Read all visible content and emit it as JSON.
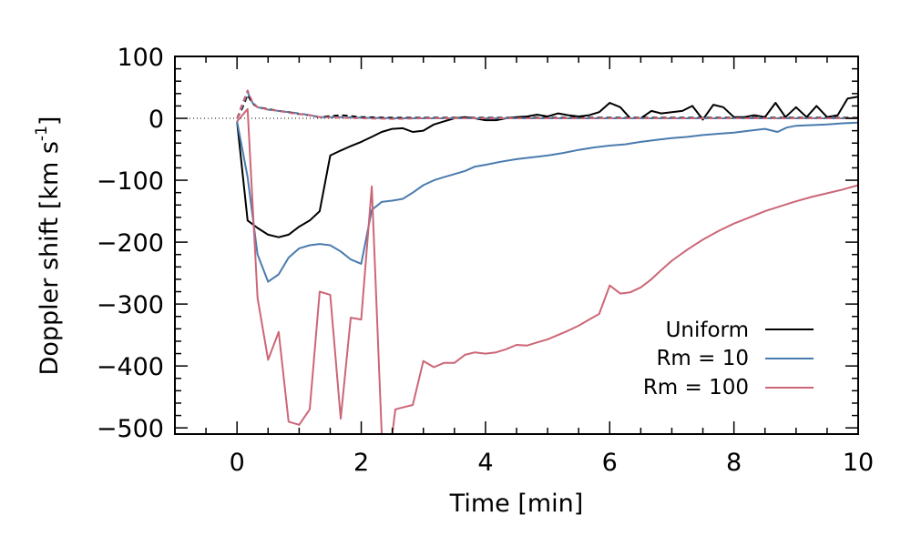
{
  "chart_data": {
    "type": "line",
    "xlabel": "Time [min]",
    "ylabel_main": "Doppler shift [km s",
    "ylabel_sup": "-1",
    "ylabel_close": "]",
    "xlim": [
      -1,
      10
    ],
    "ylim": [
      -510,
      100
    ],
    "xticks": [
      0,
      2,
      4,
      6,
      8,
      10
    ],
    "yticks": [
      100,
      0,
      -100,
      -200,
      -300,
      -400,
      -500
    ],
    "ytick_labels": [
      "100",
      "0",
      "−100",
      "−200",
      "−300",
      "−400",
      "−500"
    ],
    "zero_line": "dotted",
    "legend_position": "lower-right",
    "series": [
      {
        "name": "Uniform",
        "color": "#000000",
        "style": "solid",
        "points": [
          [
            0,
            -5
          ],
          [
            0.17,
            -165
          ],
          [
            0.33,
            -177
          ],
          [
            0.5,
            -188
          ],
          [
            0.67,
            -192
          ],
          [
            0.83,
            -188
          ],
          [
            1.0,
            -175
          ],
          [
            1.17,
            -165
          ],
          [
            1.33,
            -150
          ],
          [
            1.5,
            -60
          ],
          [
            1.67,
            -52
          ],
          [
            1.83,
            -45
          ],
          [
            2.0,
            -38
          ],
          [
            2.17,
            -30
          ],
          [
            2.33,
            -22
          ],
          [
            2.5,
            -17
          ],
          [
            2.67,
            -16
          ],
          [
            2.83,
            -22
          ],
          [
            3.0,
            -20
          ],
          [
            3.17,
            -10
          ],
          [
            3.33,
            -5
          ],
          [
            3.5,
            0
          ],
          [
            3.67,
            2
          ],
          [
            3.83,
            0
          ],
          [
            4.0,
            -3
          ],
          [
            4.17,
            -3
          ],
          [
            4.33,
            0
          ],
          [
            4.5,
            2
          ],
          [
            4.67,
            3
          ],
          [
            4.83,
            6
          ],
          [
            5.0,
            3
          ],
          [
            5.17,
            8
          ],
          [
            5.33,
            5
          ],
          [
            5.5,
            3
          ],
          [
            5.67,
            5
          ],
          [
            5.83,
            10
          ],
          [
            6.0,
            25
          ],
          [
            6.17,
            18
          ],
          [
            6.33,
            0
          ],
          [
            6.5,
            0
          ],
          [
            6.67,
            12
          ],
          [
            6.83,
            8
          ],
          [
            7.0,
            10
          ],
          [
            7.17,
            12
          ],
          [
            7.33,
            20
          ],
          [
            7.5,
            -2
          ],
          [
            7.67,
            22
          ],
          [
            7.83,
            18
          ],
          [
            8.0,
            2
          ],
          [
            8.17,
            2
          ],
          [
            8.33,
            5
          ],
          [
            8.5,
            2
          ],
          [
            8.67,
            25
          ],
          [
            8.83,
            2
          ],
          [
            9.0,
            18
          ],
          [
            9.17,
            2
          ],
          [
            9.33,
            20
          ],
          [
            9.5,
            2
          ],
          [
            9.67,
            5
          ],
          [
            9.83,
            32
          ],
          [
            10.0,
            35
          ]
        ]
      },
      {
        "name": "Rm = 10",
        "color": "#4a7bae",
        "style": "solid",
        "points": [
          [
            0,
            -5
          ],
          [
            0.17,
            -95
          ],
          [
            0.33,
            -220
          ],
          [
            0.5,
            -264
          ],
          [
            0.67,
            -252
          ],
          [
            0.83,
            -225
          ],
          [
            1.0,
            -210
          ],
          [
            1.17,
            -205
          ],
          [
            1.33,
            -203
          ],
          [
            1.5,
            -205
          ],
          [
            1.67,
            -215
          ],
          [
            1.83,
            -228
          ],
          [
            2.0,
            -235
          ],
          [
            2.17,
            -148
          ],
          [
            2.33,
            -135
          ],
          [
            2.5,
            -133
          ],
          [
            2.67,
            -130
          ],
          [
            2.83,
            -120
          ],
          [
            3.0,
            -108
          ],
          [
            3.17,
            -100
          ],
          [
            3.33,
            -95
          ],
          [
            3.5,
            -90
          ],
          [
            3.67,
            -85
          ],
          [
            3.83,
            -78
          ],
          [
            4.0,
            -75
          ],
          [
            4.25,
            -70
          ],
          [
            4.5,
            -66
          ],
          [
            4.75,
            -63
          ],
          [
            5.0,
            -60
          ],
          [
            5.25,
            -56
          ],
          [
            5.5,
            -51
          ],
          [
            5.75,
            -47
          ],
          [
            6.0,
            -44
          ],
          [
            6.25,
            -42
          ],
          [
            6.5,
            -38
          ],
          [
            6.75,
            -35
          ],
          [
            7.0,
            -32
          ],
          [
            7.25,
            -30
          ],
          [
            7.5,
            -27
          ],
          [
            7.75,
            -25
          ],
          [
            8.0,
            -23
          ],
          [
            8.25,
            -20
          ],
          [
            8.5,
            -17
          ],
          [
            8.7,
            -22
          ],
          [
            8.85,
            -15
          ],
          [
            9.0,
            -12
          ],
          [
            9.25,
            -11
          ],
          [
            9.5,
            -10
          ],
          [
            9.75,
            -8
          ],
          [
            10.0,
            -7
          ]
        ]
      },
      {
        "name": "Rm = 100",
        "color": "#cc6677",
        "style": "solid",
        "points": [
          [
            0,
            -5
          ],
          [
            0.17,
            15
          ],
          [
            0.33,
            -290
          ],
          [
            0.5,
            -390
          ],
          [
            0.67,
            -345
          ],
          [
            0.83,
            -490
          ],
          [
            1.0,
            -495
          ],
          [
            1.17,
            -470
          ],
          [
            1.33,
            -280
          ],
          [
            1.5,
            -285
          ],
          [
            1.67,
            -485
          ],
          [
            1.83,
            -322
          ],
          [
            2.0,
            -325
          ],
          [
            2.17,
            -110
          ],
          [
            2.33,
            -510
          ],
          [
            2.5,
            -510
          ],
          [
            2.55,
            -470
          ],
          [
            2.67,
            -467
          ],
          [
            2.83,
            -463
          ],
          [
            3.0,
            -392
          ],
          [
            3.17,
            -402
          ],
          [
            3.33,
            -395
          ],
          [
            3.5,
            -395
          ],
          [
            3.67,
            -382
          ],
          [
            3.83,
            -378
          ],
          [
            4.0,
            -380
          ],
          [
            4.17,
            -378
          ],
          [
            4.33,
            -373
          ],
          [
            4.5,
            -366
          ],
          [
            4.67,
            -367
          ],
          [
            4.83,
            -362
          ],
          [
            5.0,
            -357
          ],
          [
            5.17,
            -350
          ],
          [
            5.33,
            -343
          ],
          [
            5.5,
            -335
          ],
          [
            5.67,
            -325
          ],
          [
            5.83,
            -316
          ],
          [
            6.0,
            -270
          ],
          [
            6.17,
            -283
          ],
          [
            6.33,
            -281
          ],
          [
            6.5,
            -273
          ],
          [
            6.67,
            -260
          ],
          [
            6.83,
            -245
          ],
          [
            7.0,
            -230
          ],
          [
            7.25,
            -212
          ],
          [
            7.5,
            -196
          ],
          [
            7.75,
            -182
          ],
          [
            8.0,
            -170
          ],
          [
            8.25,
            -160
          ],
          [
            8.5,
            -150
          ],
          [
            8.75,
            -142
          ],
          [
            9.0,
            -134
          ],
          [
            9.25,
            -127
          ],
          [
            9.5,
            -121
          ],
          [
            9.75,
            -115
          ],
          [
            10.0,
            -108
          ]
        ]
      },
      {
        "name": "",
        "color": "#000000",
        "style": "dashed",
        "points": [
          [
            0,
            0
          ],
          [
            0.08,
            15
          ],
          [
            0.17,
            38
          ],
          [
            0.25,
            24
          ],
          [
            0.33,
            18
          ],
          [
            0.5,
            15
          ],
          [
            0.67,
            12
          ],
          [
            0.83,
            10
          ],
          [
            1.0,
            7
          ],
          [
            1.17,
            5
          ],
          [
            1.33,
            2
          ],
          [
            1.67,
            5
          ],
          [
            2.0,
            2
          ],
          [
            2.5,
            1
          ],
          [
            3.0,
            1
          ],
          [
            3.5,
            1
          ],
          [
            4.0,
            1
          ],
          [
            5.0,
            1
          ],
          [
            6.0,
            1
          ],
          [
            7.0,
            1
          ],
          [
            8.0,
            1
          ],
          [
            9.0,
            1
          ],
          [
            10.0,
            1
          ]
        ]
      },
      {
        "name": "",
        "color": "#4a7bae",
        "style": "dashed",
        "points": [
          [
            0,
            0
          ],
          [
            0.08,
            18
          ],
          [
            0.17,
            42
          ],
          [
            0.25,
            25
          ],
          [
            0.33,
            18
          ],
          [
            0.5,
            14
          ],
          [
            0.67,
            12
          ],
          [
            0.83,
            10
          ],
          [
            1.0,
            8
          ],
          [
            1.17,
            5
          ],
          [
            1.33,
            2
          ],
          [
            1.67,
            2
          ],
          [
            2.0,
            1
          ],
          [
            2.5,
            0
          ],
          [
            3.0,
            0
          ],
          [
            4.0,
            0
          ],
          [
            5.0,
            0
          ],
          [
            6.0,
            0
          ],
          [
            7.0,
            0
          ],
          [
            8.0,
            0
          ],
          [
            9.0,
            0
          ],
          [
            10.0,
            0
          ]
        ]
      },
      {
        "name": "",
        "color": "#cc6677",
        "style": "dashed",
        "points": [
          [
            0,
            0
          ],
          [
            0.08,
            22
          ],
          [
            0.17,
            45
          ],
          [
            0.25,
            26
          ],
          [
            0.33,
            18
          ],
          [
            0.5,
            14
          ],
          [
            0.67,
            12
          ],
          [
            0.83,
            9
          ],
          [
            1.0,
            7
          ],
          [
            1.17,
            5
          ],
          [
            1.33,
            2
          ],
          [
            1.67,
            1
          ],
          [
            2.0,
            0
          ],
          [
            2.5,
            -1
          ],
          [
            3.0,
            0
          ],
          [
            4.0,
            0
          ],
          [
            5.0,
            0
          ],
          [
            6.0,
            0
          ],
          [
            7.0,
            0
          ],
          [
            8.0,
            0
          ],
          [
            9.0,
            0
          ],
          [
            10.0,
            0
          ]
        ]
      }
    ]
  }
}
